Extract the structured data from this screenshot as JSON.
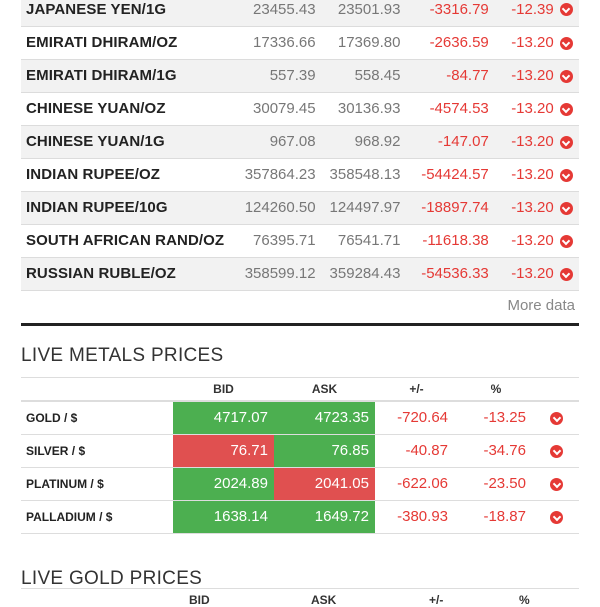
{
  "currencies": [
    {
      "name": "JAPANESE YEN/1G",
      "bid": "23455.43",
      "ask": "23501.93",
      "change": "-3316.79",
      "pct": "-12.39"
    },
    {
      "name": "EMIRATI DHIRAM/OZ",
      "bid": "17336.66",
      "ask": "17369.80",
      "change": "-2636.59",
      "pct": "-13.20"
    },
    {
      "name": "EMIRATI DHIRAM/1G",
      "bid": "557.39",
      "ask": "558.45",
      "change": "-84.77",
      "pct": "-13.20"
    },
    {
      "name": "CHINESE YUAN/OZ",
      "bid": "30079.45",
      "ask": "30136.93",
      "change": "-4574.53",
      "pct": "-13.20"
    },
    {
      "name": "CHINESE YUAN/1G",
      "bid": "967.08",
      "ask": "968.92",
      "change": "-147.07",
      "pct": "-13.20"
    },
    {
      "name": "INDIAN RUPEE/OZ",
      "bid": "357864.23",
      "ask": "358548.13",
      "change": "-54424.57",
      "pct": "-13.20"
    },
    {
      "name": "INDIAN RUPEE/10G",
      "bid": "124260.50",
      "ask": "124497.97",
      "change": "-18897.74",
      "pct": "-13.20"
    },
    {
      "name": "SOUTH AFRICAN RAND/OZ",
      "bid": "76395.71",
      "ask": "76541.71",
      "change": "-11618.38",
      "pct": "-13.20"
    },
    {
      "name": "RUSSIAN RUBLE/OZ",
      "bid": "358599.12",
      "ask": "359284.43",
      "change": "-54536.33",
      "pct": "-13.20"
    }
  ],
  "more_data_label": "More data",
  "metals": {
    "title": "LIVE METALS PRICES",
    "headers": {
      "bid": "BID",
      "ask": "ASK",
      "change": "+/-",
      "pct": "%"
    },
    "rows": [
      {
        "name": "GOLD / $",
        "bid": "4717.07",
        "ask": "4723.35",
        "change": "-720.64",
        "pct": "-13.25"
      },
      {
        "name": "SILVER / $",
        "bid": "76.71",
        "ask": "76.85",
        "change": "-40.87",
        "pct": "-34.76"
      },
      {
        "name": "PLATINUM / $",
        "bid": "2024.89",
        "ask": "2041.05",
        "change": "-622.06",
        "pct": "-23.50"
      },
      {
        "name": "PALLADIUM / $",
        "bid": "1638.14",
        "ask": "1649.72",
        "change": "-380.93",
        "pct": "-18.87"
      }
    ]
  },
  "gold": {
    "title": "LIVE GOLD PRICES",
    "headers": {
      "bid": "BID",
      "ask": "ASK",
      "change": "+/-",
      "pct": "%"
    }
  },
  "colors": {
    "up": "#4caf50",
    "down": "#e05050",
    "negative_text": "#e53935"
  },
  "icons": {
    "trend": "chevron-down-circle-icon"
  }
}
